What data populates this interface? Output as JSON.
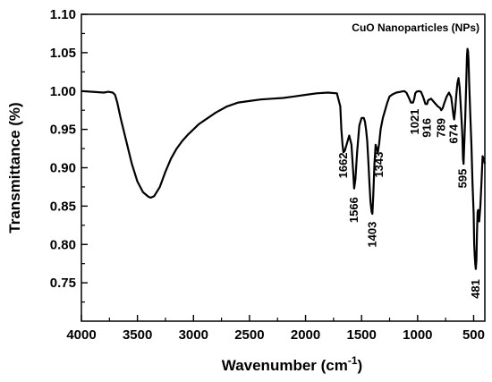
{
  "chart_data": {
    "type": "line",
    "legend_text": "CuO Nanoparticles (NPs)",
    "legend_placement": "top-right",
    "xlabel_main": "Wavenumber (cm",
    "xlabel_sup": "-1",
    "xlabel_close": ")",
    "ylabel": "Transmittance (%)",
    "xlim": [
      4000,
      400
    ],
    "ylim": [
      0.7,
      1.1
    ],
    "x_ticks": [
      4000,
      3500,
      3000,
      2500,
      2000,
      1500,
      1000,
      500
    ],
    "x_tick_labels": [
      "4000",
      "3500",
      "3000",
      "2500",
      "2000",
      "1500",
      "1000",
      "500"
    ],
    "y_ticks": [
      0.75,
      0.8,
      0.85,
      0.9,
      0.95,
      1.0,
      1.05,
      1.1
    ],
    "y_tick_labels": [
      "0.75",
      "0.80",
      "0.85",
      "0.90",
      "0.95",
      "1.00",
      "1.05",
      "1.10"
    ],
    "grid": false,
    "line_color": "#000000",
    "series": [
      {
        "x": [
          4000,
          3900,
          3800,
          3760,
          3720,
          3700,
          3680,
          3650,
          3600,
          3550,
          3500,
          3450,
          3400,
          3380,
          3350,
          3300,
          3250,
          3200,
          3150,
          3100,
          3050,
          3000,
          2950,
          2900,
          2800,
          2700,
          2600,
          2500,
          2400,
          2300,
          2200,
          2100,
          2000,
          1900,
          1800,
          1720,
          1690,
          1680,
          1670,
          1662,
          1650,
          1630,
          1610,
          1590,
          1575,
          1566,
          1555,
          1540,
          1520,
          1500,
          1480,
          1470,
          1460,
          1450,
          1440,
          1430,
          1420,
          1410,
          1403,
          1395,
          1385,
          1375,
          1365,
          1355,
          1343,
          1330,
          1310,
          1290,
          1270,
          1250,
          1220,
          1190,
          1150,
          1120,
          1100,
          1080,
          1060,
          1040,
          1030,
          1021,
          1010,
          990,
          970,
          950,
          930,
          916,
          905,
          880,
          850,
          820,
          800,
          789,
          775,
          760,
          740,
          720,
          700,
          690,
          680,
          674,
          665,
          655,
          645,
          635,
          625,
          615,
          605,
          600,
          595,
          590,
          585,
          575,
          565,
          560,
          555,
          550,
          545,
          540,
          530,
          520,
          510,
          500,
          495,
          490,
          485,
          481,
          475,
          470,
          465,
          460,
          455,
          450,
          440,
          430,
          420,
          410,
          400
        ],
        "y": [
          1.0,
          0.999,
          0.998,
          0.999,
          0.998,
          0.995,
          0.985,
          0.965,
          0.935,
          0.905,
          0.882,
          0.868,
          0.862,
          0.861,
          0.863,
          0.875,
          0.895,
          0.912,
          0.925,
          0.935,
          0.943,
          0.95,
          0.957,
          0.962,
          0.972,
          0.98,
          0.985,
          0.987,
          0.989,
          0.99,
          0.991,
          0.993,
          0.995,
          0.997,
          0.998,
          0.997,
          0.98,
          0.95,
          0.93,
          0.92,
          0.922,
          0.932,
          0.942,
          0.93,
          0.895,
          0.873,
          0.885,
          0.92,
          0.955,
          0.965,
          0.965,
          0.96,
          0.95,
          0.935,
          0.91,
          0.88,
          0.855,
          0.842,
          0.84,
          0.865,
          0.905,
          0.93,
          0.925,
          0.92,
          0.932,
          0.95,
          0.965,
          0.975,
          0.985,
          0.993,
          0.996,
          0.998,
          0.999,
          1.0,
          0.998,
          0.992,
          0.985,
          0.985,
          0.99,
          0.997,
          0.999,
          1.0,
          0.999,
          0.992,
          0.983,
          0.983,
          0.988,
          0.99,
          0.985,
          0.98,
          0.978,
          0.975,
          0.978,
          0.985,
          0.993,
          0.998,
          0.992,
          0.98,
          0.968,
          0.963,
          0.975,
          0.995,
          1.01,
          1.017,
          1.005,
          0.98,
          0.955,
          0.94,
          0.912,
          0.905,
          0.925,
          0.965,
          1.015,
          1.045,
          1.055,
          1.052,
          1.04,
          1.01,
          0.97,
          0.93,
          0.88,
          0.84,
          0.8,
          0.785,
          0.773,
          0.768,
          0.78,
          0.815,
          0.842,
          0.845,
          0.838,
          0.83,
          0.85,
          0.88,
          0.915,
          0.912,
          0.905
        ]
      }
    ],
    "annotations": [
      {
        "text": "1662",
        "x": 1662,
        "y": 0.903
      },
      {
        "text": "1566",
        "x": 1566,
        "y": 0.845
      },
      {
        "text": "1403",
        "x": 1403,
        "y": 0.813
      },
      {
        "text": "1343",
        "x": 1343,
        "y": 0.904
      },
      {
        "text": "1021",
        "x": 1021,
        "y": 0.96
      },
      {
        "text": "916",
        "x": 916,
        "y": 0.952
      },
      {
        "text": "789",
        "x": 789,
        "y": 0.952
      },
      {
        "text": "674",
        "x": 674,
        "y": 0.944
      },
      {
        "text": "595",
        "x": 595,
        "y": 0.886
      },
      {
        "text": "481",
        "x": 481,
        "y": 0.742
      }
    ]
  }
}
